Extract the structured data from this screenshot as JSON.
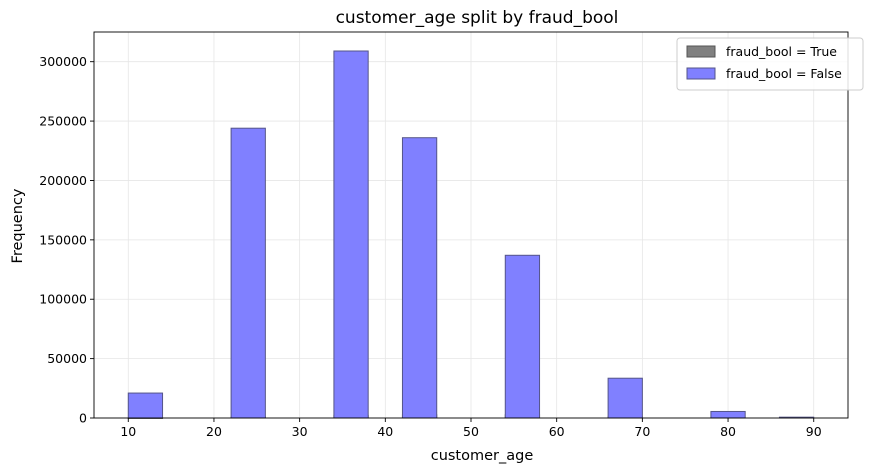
{
  "chart_data": {
    "type": "bar",
    "title": "customer_age split by fraud_bool",
    "xlabel": "customer_age",
    "ylabel": "Frequency",
    "xlim": [
      6,
      94
    ],
    "ylim": [
      0,
      325000
    ],
    "xticks": [
      10,
      20,
      30,
      40,
      50,
      60,
      70,
      80,
      90
    ],
    "yticks": [
      0,
      50000,
      100000,
      150000,
      200000,
      250000,
      300000
    ],
    "bin_edges": [
      10,
      14,
      18,
      22,
      26,
      30,
      34,
      38,
      42,
      46,
      50,
      54,
      58,
      62,
      66,
      70,
      74,
      78,
      82,
      86,
      90
    ],
    "grid": true,
    "legend_position": "top-right",
    "series": [
      {
        "name": "fraud_bool = True",
        "color": "#808080",
        "edge_color": "#555555",
        "values": [
          60,
          0,
          0,
          700,
          0,
          0,
          2200,
          0,
          2700,
          0,
          0,
          2700,
          0,
          0,
          1000,
          0,
          0,
          0,
          0,
          0
        ]
      },
      {
        "name": "fraud_bool = False",
        "color": "#8080ff",
        "edge_color": "#555588",
        "values": [
          21000,
          0,
          0,
          244000,
          0,
          0,
          309000,
          0,
          236000,
          0,
          0,
          137000,
          0,
          0,
          33500,
          0,
          0,
          5500,
          0,
          700
        ]
      }
    ]
  }
}
